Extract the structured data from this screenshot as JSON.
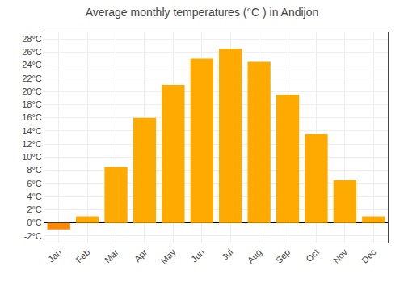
{
  "chart_data": {
    "type": "bar",
    "title": "Average monthly temperatures (°C ) in Andijon",
    "categories": [
      "Jan",
      "Feb",
      "Mar",
      "Apr",
      "May",
      "Jun",
      "Jul",
      "Aug",
      "Sep",
      "Oct",
      "Nov",
      "Dec"
    ],
    "values": [
      -1.0,
      1.0,
      8.5,
      16.0,
      21.0,
      25.0,
      26.5,
      24.5,
      19.5,
      13.5,
      6.5,
      1.0
    ],
    "colors": [
      "#FF8800",
      "#FFAA00",
      "#FFAA00",
      "#FFAA00",
      "#FFAA00",
      "#FFAA00",
      "#FFAA00",
      "#FFAA00",
      "#FFAA00",
      "#FFAA00",
      "#FFAA00",
      "#FFAA00"
    ],
    "ylim": [
      -3,
      29
    ],
    "yticks": [
      {
        "value": -2,
        "label": "-2°C"
      },
      {
        "value": 0,
        "label": "0°C"
      },
      {
        "value": 2,
        "label": "2°C"
      },
      {
        "value": 4,
        "label": "4°C"
      },
      {
        "value": 6,
        "label": "6°C"
      },
      {
        "value": 8,
        "label": "8°C"
      },
      {
        "value": 10,
        "label": "10°C"
      },
      {
        "value": 12,
        "label": "12°C"
      },
      {
        "value": 14,
        "label": "14°C"
      },
      {
        "value": 16,
        "label": "16°C"
      },
      {
        "value": 18,
        "label": "18°C"
      },
      {
        "value": 20,
        "label": "20°C"
      },
      {
        "value": 22,
        "label": "22°C"
      },
      {
        "value": 24,
        "label": "24°C"
      },
      {
        "value": 26,
        "label": "26°C"
      },
      {
        "value": 28,
        "label": "28°C"
      }
    ],
    "grid": true
  }
}
